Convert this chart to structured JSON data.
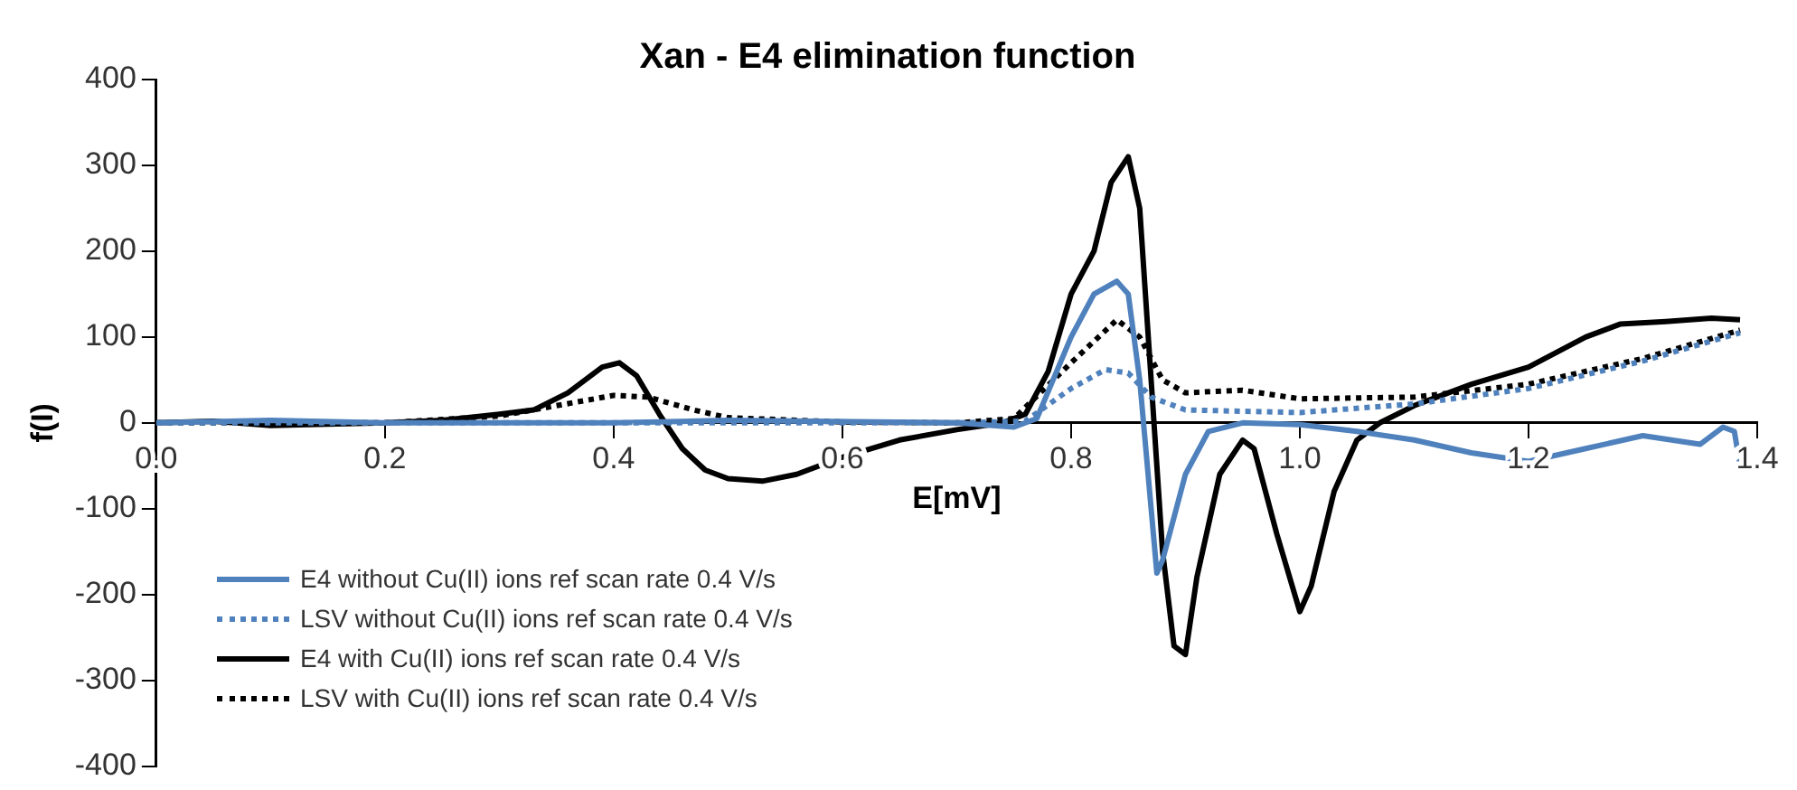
{
  "chart_data": {
    "type": "line",
    "title": "Xan - E4 elimination function",
    "xlabel": "E[mV]",
    "ylabel": "f(I)",
    "xlim": [
      0,
      1.4
    ],
    "xticks": [
      {
        "value": 0,
        "label": "0.0"
      },
      0.2,
      0.4,
      0.6,
      0.8,
      {
        "value": 1,
        "label": "1.0"
      },
      1.2,
      1.4
    ],
    "ylim": [
      -400,
      400
    ],
    "yticks": [
      -400,
      -300,
      -200,
      -100,
      0,
      100,
      200,
      300,
      400
    ],
    "grid": false,
    "legend": "bottom left",
    "marker": "none",
    "series": [
      {
        "name": "E4 without Cu(II) ions ref scan rate 0.4 V/s",
        "color": "#4f81bd",
        "line_style": "solid",
        "x": [
          0,
          0.1,
          0.2,
          0.4,
          0.5,
          0.7,
          0.75,
          0.77,
          0.8,
          0.82,
          0.84,
          0.85,
          0.86,
          0.87,
          0.875,
          0.88,
          0.9,
          0.92,
          0.95,
          1.0,
          1.05,
          1.1,
          1.15,
          1.2,
          1.25,
          1.3,
          1.35,
          1.37,
          1.38,
          1.385
        ],
        "values": [
          0,
          3,
          0,
          0,
          3,
          0,
          -5,
          5,
          100,
          150,
          165,
          150,
          50,
          -100,
          -175,
          -160,
          -60,
          -10,
          0,
          -2,
          -10,
          -20,
          -35,
          -45,
          -30,
          -15,
          -25,
          -5,
          -10,
          -50
        ]
      },
      {
        "name": "LSV without Cu(II) ions ref scan rate 0.4 V/s",
        "color": "#4f81bd",
        "line_style": "dotted",
        "x": [
          0,
          0.7,
          0.76,
          0.8,
          0.83,
          0.85,
          0.87,
          0.9,
          1.0,
          1.1,
          1.2,
          1.3,
          1.385
        ],
        "values": [
          0,
          0,
          2,
          40,
          62,
          58,
          30,
          15,
          12,
          22,
          40,
          72,
          105
        ]
      },
      {
        "name": "E4 with Cu(II) ions ref scan rate 0.4 V/s",
        "color": "#000000",
        "line_style": "solid",
        "x": [
          0,
          0.05,
          0.1,
          0.2,
          0.25,
          0.3,
          0.33,
          0.36,
          0.39,
          0.405,
          0.42,
          0.44,
          0.46,
          0.48,
          0.5,
          0.53,
          0.56,
          0.6,
          0.65,
          0.7,
          0.74,
          0.76,
          0.78,
          0.8,
          0.82,
          0.835,
          0.85,
          0.86,
          0.87,
          0.88,
          0.89,
          0.9,
          0.91,
          0.93,
          0.95,
          0.96,
          0.98,
          1.0,
          1.01,
          1.03,
          1.05,
          1.07,
          1.1,
          1.15,
          1.2,
          1.25,
          1.28,
          1.32,
          1.36,
          1.385
        ],
        "values": [
          0,
          2,
          -3,
          0,
          3,
          10,
          15,
          35,
          65,
          70,
          55,
          10,
          -30,
          -55,
          -65,
          -68,
          -60,
          -40,
          -20,
          -8,
          0,
          10,
          60,
          150,
          200,
          280,
          310,
          250,
          50,
          -150,
          -260,
          -270,
          -180,
          -60,
          -20,
          -30,
          -130,
          -220,
          -190,
          -80,
          -20,
          0,
          20,
          45,
          65,
          100,
          115,
          118,
          122,
          120
        ]
      },
      {
        "name": "LSV with Cu(II) ions ref scan rate 0.4 V/s",
        "color": "#000000",
        "line_style": "dotted",
        "x": [
          0,
          0.2,
          0.3,
          0.35,
          0.4,
          0.43,
          0.47,
          0.5,
          0.6,
          0.7,
          0.75,
          0.8,
          0.84,
          0.86,
          0.88,
          0.9,
          0.95,
          1.0,
          1.1,
          1.2,
          1.3,
          1.385
        ],
        "values": [
          0,
          0,
          8,
          20,
          32,
          30,
          15,
          6,
          1,
          0,
          5,
          70,
          120,
          100,
          50,
          35,
          38,
          28,
          30,
          45,
          75,
          108
        ]
      }
    ]
  }
}
